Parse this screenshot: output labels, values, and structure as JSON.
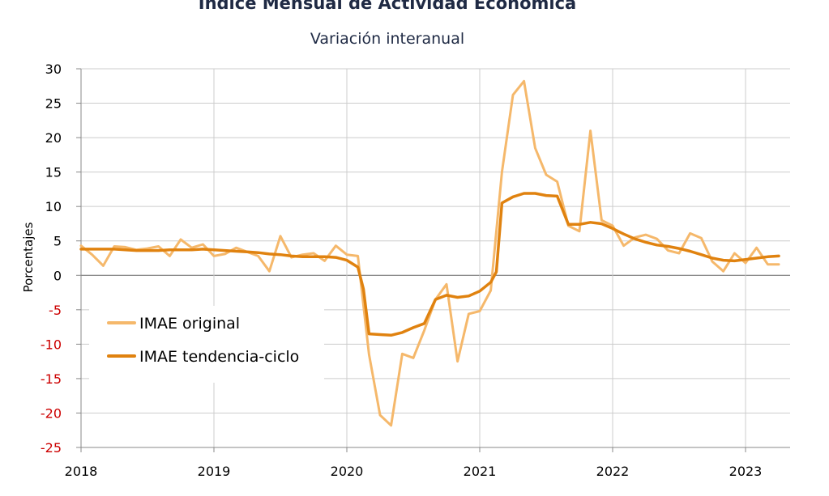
{
  "chart_data": {
    "type": "line",
    "title": "Índice Mensual de  Actividad Económica",
    "subtitle": "Variación interanual",
    "ylabel": "Porcentajes",
    "ylim": [
      -25,
      30
    ],
    "ytick_step": 5,
    "xlim": [
      2018.0,
      2023.333
    ],
    "x_ticks": [
      "2018",
      "2019",
      "2020",
      "2021",
      "2022",
      "2023"
    ],
    "grid": true,
    "legend_position": "lower-left",
    "colors": {
      "negative_tick": "#cc0000",
      "positive_tick": "#000000",
      "grid": "#cccccc",
      "axis": "#888888"
    },
    "series": [
      {
        "name": "IMAE original",
        "color": "#f5b86b",
        "points": [
          [
            2018.0,
            4.3
          ],
          [
            2018.083,
            3.0
          ],
          [
            2018.167,
            1.4
          ],
          [
            2018.25,
            4.2
          ],
          [
            2018.333,
            4.1
          ],
          [
            2018.417,
            3.7
          ],
          [
            2018.5,
            3.9
          ],
          [
            2018.583,
            4.2
          ],
          [
            2018.667,
            2.8
          ],
          [
            2018.75,
            5.2
          ],
          [
            2018.833,
            4.0
          ],
          [
            2018.917,
            4.5
          ],
          [
            2019.0,
            2.8
          ],
          [
            2019.083,
            3.1
          ],
          [
            2019.167,
            4.0
          ],
          [
            2019.25,
            3.4
          ],
          [
            2019.333,
            2.8
          ],
          [
            2019.417,
            0.6
          ],
          [
            2019.5,
            5.7
          ],
          [
            2019.583,
            2.6
          ],
          [
            2019.667,
            3.0
          ],
          [
            2019.75,
            3.2
          ],
          [
            2019.833,
            2.1
          ],
          [
            2019.917,
            4.3
          ],
          [
            2020.0,
            3.0
          ],
          [
            2020.083,
            2.8
          ],
          [
            2020.167,
            -11.5
          ],
          [
            2020.25,
            -20.3
          ],
          [
            2020.333,
            -21.8
          ],
          [
            2020.417,
            -11.4
          ],
          [
            2020.5,
            -12.0
          ],
          [
            2020.583,
            -8.0
          ],
          [
            2020.667,
            -3.5
          ],
          [
            2020.75,
            -1.3
          ],
          [
            2020.833,
            -12.5
          ],
          [
            2020.917,
            -5.6
          ],
          [
            2021.0,
            -5.2
          ],
          [
            2021.083,
            -2.2
          ],
          [
            2021.167,
            15.0
          ],
          [
            2021.25,
            26.2
          ],
          [
            2021.333,
            28.2
          ],
          [
            2021.417,
            18.5
          ],
          [
            2021.5,
            14.6
          ],
          [
            2021.583,
            13.6
          ],
          [
            2021.667,
            7.2
          ],
          [
            2021.75,
            6.4
          ],
          [
            2021.833,
            21.0
          ],
          [
            2021.917,
            8.0
          ],
          [
            2022.0,
            7.2
          ],
          [
            2022.083,
            4.3
          ],
          [
            2022.167,
            5.5
          ],
          [
            2022.25,
            5.9
          ],
          [
            2022.333,
            5.3
          ],
          [
            2022.417,
            3.6
          ],
          [
            2022.5,
            3.2
          ],
          [
            2022.583,
            6.1
          ],
          [
            2022.667,
            5.4
          ],
          [
            2022.75,
            2.0
          ],
          [
            2022.833,
            0.6
          ],
          [
            2022.917,
            3.2
          ],
          [
            2023.0,
            1.8
          ],
          [
            2023.083,
            4.0
          ],
          [
            2023.167,
            1.6
          ],
          [
            2023.25,
            1.6
          ]
        ]
      },
      {
        "name": "IMAE tendencia-ciclo",
        "color": "#e0820f",
        "points": [
          [
            2018.0,
            3.8
          ],
          [
            2018.083,
            3.8
          ],
          [
            2018.167,
            3.8
          ],
          [
            2018.25,
            3.8
          ],
          [
            2018.333,
            3.7
          ],
          [
            2018.417,
            3.6
          ],
          [
            2018.5,
            3.6
          ],
          [
            2018.583,
            3.6
          ],
          [
            2018.667,
            3.7
          ],
          [
            2018.75,
            3.7
          ],
          [
            2018.833,
            3.7
          ],
          [
            2018.917,
            3.8
          ],
          [
            2019.0,
            3.7
          ],
          [
            2019.083,
            3.6
          ],
          [
            2019.167,
            3.5
          ],
          [
            2019.25,
            3.4
          ],
          [
            2019.333,
            3.3
          ],
          [
            2019.417,
            3.1
          ],
          [
            2019.5,
            3.0
          ],
          [
            2019.583,
            2.8
          ],
          [
            2019.667,
            2.7
          ],
          [
            2019.75,
            2.7
          ],
          [
            2019.833,
            2.7
          ],
          [
            2019.917,
            2.6
          ],
          [
            2020.0,
            2.2
          ],
          [
            2020.083,
            1.2
          ],
          [
            2020.125,
            -2.0
          ],
          [
            2020.167,
            -8.5
          ],
          [
            2020.25,
            -8.6
          ],
          [
            2020.333,
            -8.7
          ],
          [
            2020.417,
            -8.3
          ],
          [
            2020.5,
            -7.6
          ],
          [
            2020.583,
            -7.0
          ],
          [
            2020.667,
            -3.5
          ],
          [
            2020.75,
            -2.9
          ],
          [
            2020.833,
            -3.2
          ],
          [
            2020.917,
            -3.0
          ],
          [
            2021.0,
            -2.3
          ],
          [
            2021.083,
            -1.0
          ],
          [
            2021.125,
            0.5
          ],
          [
            2021.167,
            10.5
          ],
          [
            2021.25,
            11.4
          ],
          [
            2021.333,
            11.9
          ],
          [
            2021.417,
            11.9
          ],
          [
            2021.5,
            11.6
          ],
          [
            2021.583,
            11.5
          ],
          [
            2021.667,
            7.4
          ],
          [
            2021.75,
            7.4
          ],
          [
            2021.833,
            7.7
          ],
          [
            2021.917,
            7.5
          ],
          [
            2022.0,
            6.8
          ],
          [
            2022.083,
            6.0
          ],
          [
            2022.167,
            5.3
          ],
          [
            2022.25,
            4.8
          ],
          [
            2022.333,
            4.4
          ],
          [
            2022.417,
            4.2
          ],
          [
            2022.5,
            3.9
          ],
          [
            2022.583,
            3.5
          ],
          [
            2022.667,
            3.0
          ],
          [
            2022.75,
            2.5
          ],
          [
            2022.833,
            2.2
          ],
          [
            2022.917,
            2.1
          ],
          [
            2023.0,
            2.3
          ],
          [
            2023.083,
            2.5
          ],
          [
            2023.167,
            2.7
          ],
          [
            2023.25,
            2.8
          ]
        ]
      }
    ]
  }
}
